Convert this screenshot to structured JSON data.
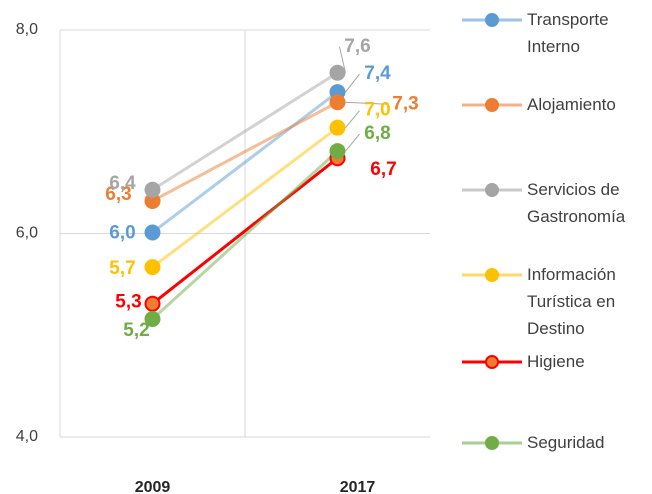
{
  "chart_data": {
    "type": "line",
    "categories": [
      "2009",
      "2017"
    ],
    "ylim": [
      4,
      8
    ],
    "yticks": [
      {
        "value": 4,
        "label": "4,0"
      },
      {
        "value": 6,
        "label": "6,0"
      },
      {
        "value": 8,
        "label": "8,0"
      }
    ],
    "grid": true,
    "legend": "right",
    "series": [
      {
        "name": "Transporte Interno",
        "color": "#5b9bd5",
        "values": [
          6.01,
          7.39
        ],
        "value_labels": [
          "6,0",
          "7,4"
        ]
      },
      {
        "name": "Alojamiento",
        "color": "#ed7d31",
        "values": [
          6.32,
          7.29
        ],
        "value_labels": [
          "6,3",
          "7,3"
        ]
      },
      {
        "name": "Servicios de Gastronomía",
        "color": "#a5a5a5",
        "values": [
          6.43,
          7.58
        ],
        "value_labels": [
          "6,4",
          "7,6"
        ]
      },
      {
        "name": "Información Turística en Destino",
        "color": "#ffc000",
        "values": [
          5.67,
          7.04
        ],
        "value_labels": [
          "5,7",
          "7,0"
        ]
      },
      {
        "name": "Higiene",
        "color": "#ff0000",
        "values": [
          5.31,
          6.74
        ],
        "value_labels": [
          "5,3",
          "6,7"
        ]
      },
      {
        "name": "Seguridad",
        "color": "#70ad47",
        "values": [
          5.16,
          6.81
        ],
        "value_labels": [
          "5,2",
          "6,8"
        ]
      }
    ]
  }
}
